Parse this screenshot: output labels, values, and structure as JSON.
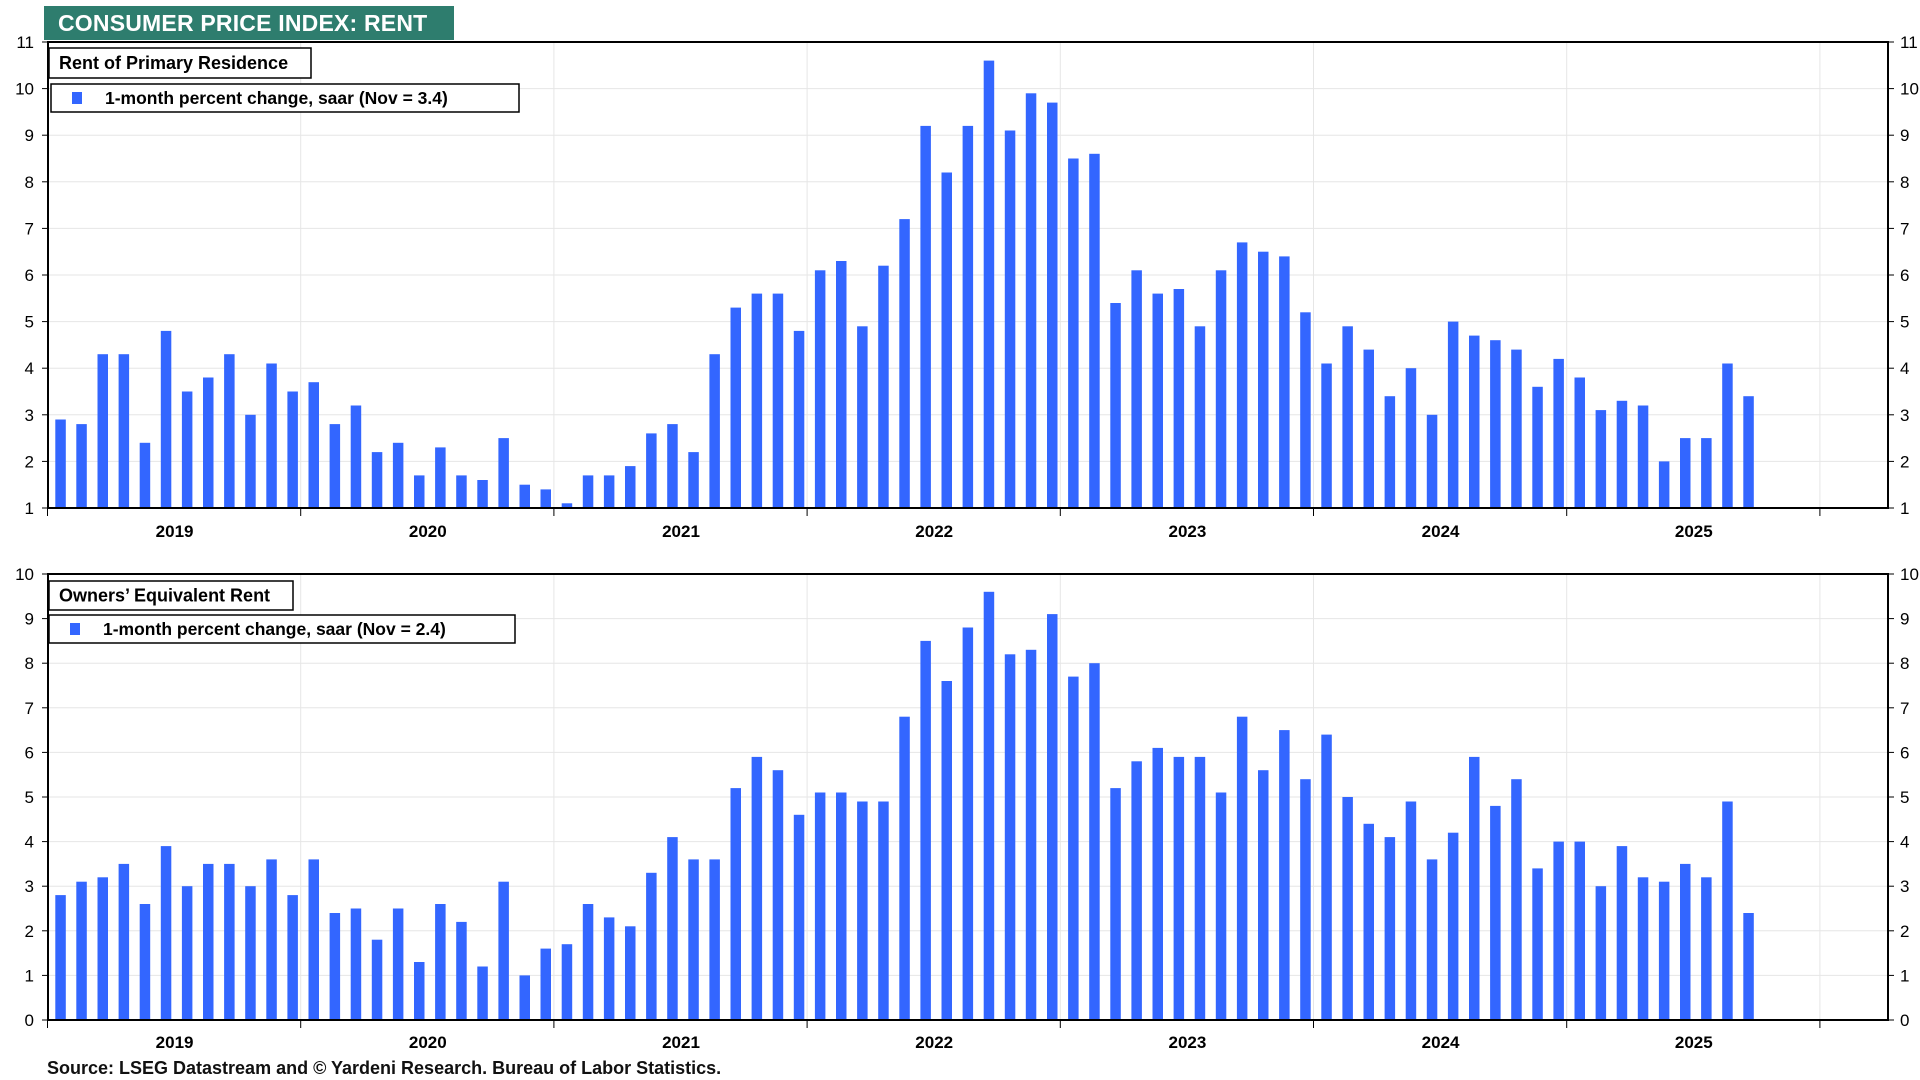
{
  "title": "CONSUMER PRICE INDEX: RENT",
  "source": "Source: LSEG Datastream and © Yardeni Research. Bureau of Labor Statistics.",
  "colors": {
    "bar": "#3366ff",
    "title_bg": "#2e7d6e",
    "grid": "#e6e6e6"
  },
  "chart_data": [
    {
      "type": "bar",
      "title": "Rent of Primary Residence",
      "legend": "1-month percent change, saar (Nov = 3.4)",
      "x_tick_labels": [
        "2019",
        "2020",
        "2021",
        "2022",
        "2023",
        "2024",
        "2025"
      ],
      "x_start": "2019-01",
      "ylim": [
        1,
        11
      ],
      "yticks": [
        1,
        2,
        3,
        4,
        5,
        6,
        7,
        8,
        9,
        10,
        11
      ],
      "y_axis_both_sides": true,
      "grid": true,
      "values": [
        2.9,
        2.8,
        4.3,
        4.3,
        2.4,
        4.8,
        3.5,
        3.8,
        4.3,
        3.0,
        4.1,
        3.5,
        3.7,
        2.8,
        3.2,
        2.2,
        2.4,
        1.7,
        2.3,
        1.7,
        1.6,
        2.5,
        1.5,
        1.4,
        1.1,
        1.7,
        1.7,
        1.9,
        2.6,
        2.8,
        2.2,
        4.3,
        5.3,
        5.6,
        5.6,
        4.8,
        6.1,
        6.3,
        4.9,
        6.2,
        7.2,
        9.2,
        8.2,
        9.2,
        10.6,
        9.1,
        9.9,
        9.7,
        8.5,
        8.6,
        5.4,
        6.1,
        5.6,
        5.7,
        4.9,
        6.1,
        6.7,
        6.5,
        6.4,
        5.2,
        4.1,
        4.9,
        4.4,
        3.4,
        4.0,
        3.0,
        5.0,
        4.7,
        4.6,
        4.4,
        3.6,
        4.2,
        3.8,
        3.1,
        3.3,
        3.2,
        2.0,
        2.5,
        2.5,
        4.1,
        3.4
      ]
    },
    {
      "type": "bar",
      "title": "Owners’ Equivalent Rent",
      "legend": "1-month percent change, saar (Nov = 2.4)",
      "x_tick_labels": [
        "2019",
        "2020",
        "2021",
        "2022",
        "2023",
        "2024",
        "2025"
      ],
      "x_start": "2019-01",
      "ylim": [
        0,
        10
      ],
      "yticks": [
        0,
        1,
        2,
        3,
        4,
        5,
        6,
        7,
        8,
        9,
        10
      ],
      "y_axis_both_sides": true,
      "grid": true,
      "values": [
        2.8,
        3.1,
        3.2,
        3.5,
        2.6,
        3.9,
        3.0,
        3.5,
        3.5,
        3.0,
        3.6,
        2.8,
        3.6,
        2.4,
        2.5,
        1.8,
        2.5,
        1.3,
        2.6,
        2.2,
        1.2,
        3.1,
        1.0,
        1.6,
        1.7,
        2.6,
        2.3,
        2.1,
        3.3,
        4.1,
        3.6,
        3.6,
        5.2,
        5.9,
        5.6,
        4.6,
        5.1,
        5.1,
        4.9,
        4.9,
        6.8,
        8.5,
        7.6,
        8.8,
        9.6,
        8.2,
        8.3,
        9.1,
        7.7,
        8.0,
        5.2,
        5.8,
        6.1,
        5.9,
        5.9,
        5.1,
        6.8,
        5.6,
        6.5,
        5.4,
        6.4,
        5.0,
        4.4,
        4.1,
        4.9,
        3.6,
        4.2,
        5.9,
        4.8,
        5.4,
        3.4,
        4.0,
        4.0,
        3.0,
        3.9,
        3.2,
        3.1,
        3.5,
        3.2,
        4.9,
        2.4
      ]
    }
  ]
}
